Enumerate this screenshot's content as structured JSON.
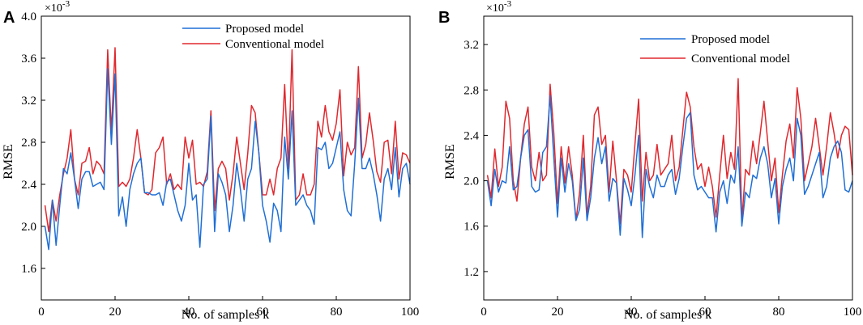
{
  "chart_data": [
    {
      "panel": "A",
      "type": "line",
      "xlabel": "No. of samples k",
      "ylabel": "RMSE",
      "exponent_label": "×10",
      "exponent_power": "-3",
      "xlim": [
        0,
        100
      ],
      "ylim": [
        1.3,
        4.0
      ],
      "xticks": [
        0,
        20,
        40,
        60,
        80,
        100
      ],
      "yticks": [
        1.6,
        2.0,
        2.4,
        2.8,
        3.2,
        3.6,
        4.0
      ],
      "ytick_labels": [
        "1.6",
        "2.0",
        "2.4",
        "2.8",
        "3.2",
        "3.6",
        "4.0"
      ],
      "grid": false,
      "legend_position": "top-center",
      "x": [
        1,
        2,
        3,
        4,
        5,
        6,
        7,
        8,
        9,
        10,
        11,
        12,
        13,
        14,
        15,
        16,
        17,
        18,
        19,
        20,
        21,
        22,
        23,
        24,
        25,
        26,
        27,
        28,
        29,
        30,
        31,
        32,
        33,
        34,
        35,
        36,
        37,
        38,
        39,
        40,
        41,
        42,
        43,
        44,
        45,
        46,
        47,
        48,
        49,
        50,
        51,
        52,
        53,
        54,
        55,
        56,
        57,
        58,
        59,
        60,
        61,
        62,
        63,
        64,
        65,
        66,
        67,
        68,
        69,
        70,
        71,
        72,
        73,
        74,
        75,
        76,
        77,
        78,
        79,
        80,
        81,
        82,
        83,
        84,
        85,
        86,
        87,
        88,
        89,
        90,
        91,
        92,
        93,
        94,
        95,
        96,
        97,
        98,
        99,
        100
      ],
      "series": [
        {
          "name": "Proposed model",
          "color": "#1f6fd6",
          "values": [
            2.0,
            1.78,
            2.25,
            1.82,
            2.2,
            2.55,
            2.5,
            2.7,
            2.45,
            2.17,
            2.45,
            2.52,
            2.52,
            2.38,
            2.4,
            2.42,
            2.35,
            3.5,
            2.78,
            3.45,
            2.1,
            2.28,
            2.0,
            2.35,
            2.5,
            2.6,
            2.65,
            2.32,
            2.32,
            2.3,
            2.3,
            2.32,
            2.2,
            2.42,
            2.45,
            2.3,
            2.15,
            2.05,
            2.2,
            2.6,
            2.25,
            2.3,
            1.8,
            2.4,
            2.45,
            3.05,
            1.95,
            2.5,
            2.42,
            2.3,
            1.95,
            2.2,
            2.6,
            2.35,
            2.05,
            2.45,
            2.55,
            3.0,
            2.7,
            2.2,
            2.05,
            1.85,
            2.22,
            2.15,
            1.95,
            2.85,
            2.45,
            3.1,
            2.2,
            2.25,
            2.3,
            2.2,
            2.15,
            2.02,
            2.75,
            2.73,
            2.8,
            2.55,
            2.6,
            2.75,
            2.9,
            2.35,
            2.15,
            2.1,
            2.6,
            3.22,
            2.55,
            2.55,
            2.65,
            2.5,
            2.3,
            2.05,
            2.45,
            2.55,
            2.35,
            2.75,
            2.28,
            2.55,
            2.6,
            2.4
          ]
        },
        {
          "name": "Conventional model",
          "color": "#e0282e",
          "values": [
            2.2,
            1.95,
            2.25,
            2.05,
            2.3,
            2.5,
            2.65,
            2.92,
            2.45,
            2.3,
            2.6,
            2.62,
            2.75,
            2.5,
            2.62,
            2.58,
            2.5,
            3.68,
            2.9,
            3.7,
            2.38,
            2.42,
            2.38,
            2.45,
            2.65,
            2.92,
            2.65,
            2.32,
            2.3,
            2.35,
            2.7,
            2.75,
            2.85,
            2.4,
            2.5,
            2.35,
            2.4,
            2.35,
            2.85,
            2.65,
            2.82,
            2.4,
            2.42,
            2.38,
            2.52,
            3.1,
            2.15,
            2.55,
            2.62,
            2.55,
            2.25,
            2.5,
            2.85,
            2.6,
            2.35,
            2.7,
            3.15,
            3.08,
            2.7,
            2.3,
            2.3,
            2.45,
            2.3,
            2.55,
            2.65,
            3.35,
            2.55,
            3.68,
            2.25,
            2.3,
            2.5,
            2.3,
            2.3,
            2.4,
            3.0,
            2.85,
            3.15,
            2.9,
            2.82,
            2.98,
            3.3,
            2.48,
            2.8,
            2.68,
            2.75,
            3.52,
            2.65,
            2.78,
            3.08,
            2.82,
            2.52,
            2.42,
            2.8,
            2.82,
            2.5,
            3.0,
            2.45,
            2.7,
            2.68,
            2.6
          ]
        }
      ]
    },
    {
      "panel": "B",
      "type": "line",
      "xlabel": "No. of samples k",
      "ylabel": "RMSE",
      "exponent_label": "×10",
      "exponent_power": "-3",
      "xlim": [
        0,
        100
      ],
      "ylim": [
        0.95,
        3.45
      ],
      "xticks": [
        0,
        20,
        40,
        60,
        80,
        100
      ],
      "yticks": [
        1.2,
        1.6,
        2.0,
        2.4,
        2.8,
        3.2
      ],
      "ytick_labels": [
        "1.2",
        "1.6",
        "2.0",
        "2.4",
        "2.8",
        "3.2"
      ],
      "grid": false,
      "legend_position": "top-center",
      "x": [
        1,
        2,
        3,
        4,
        5,
        6,
        7,
        8,
        9,
        10,
        11,
        12,
        13,
        14,
        15,
        16,
        17,
        18,
        19,
        20,
        21,
        22,
        23,
        24,
        25,
        26,
        27,
        28,
        29,
        30,
        31,
        32,
        33,
        34,
        35,
        36,
        37,
        38,
        39,
        40,
        41,
        42,
        43,
        44,
        45,
        46,
        47,
        48,
        49,
        50,
        51,
        52,
        53,
        54,
        55,
        56,
        57,
        58,
        59,
        60,
        61,
        62,
        63,
        64,
        65,
        66,
        67,
        68,
        69,
        70,
        71,
        72,
        73,
        74,
        75,
        76,
        77,
        78,
        79,
        80,
        81,
        82,
        83,
        84,
        85,
        86,
        87,
        88,
        89,
        90,
        91,
        92,
        93,
        94,
        95,
        96,
        97,
        98,
        99,
        100
      ],
      "series": [
        {
          "name": "Proposed model",
          "color": "#1f6fd6",
          "values": [
            2.0,
            1.78,
            2.1,
            1.9,
            2.0,
            1.98,
            2.3,
            1.92,
            1.95,
            2.2,
            2.4,
            2.45,
            1.95,
            1.9,
            1.92,
            2.25,
            2.3,
            2.75,
            2.2,
            1.68,
            2.2,
            1.9,
            2.15,
            2.0,
            1.65,
            1.75,
            2.2,
            1.65,
            1.85,
            2.2,
            2.38,
            2.15,
            2.3,
            1.82,
            2.02,
            1.98,
            1.52,
            2.02,
            1.92,
            1.78,
            2.05,
            2.4,
            1.5,
            2.1,
            1.95,
            1.85,
            2.05,
            1.95,
            1.95,
            2.05,
            2.1,
            1.88,
            2.02,
            2.3,
            2.55,
            2.6,
            2.05,
            1.92,
            1.95,
            1.9,
            1.85,
            1.85,
            1.55,
            1.9,
            2.0,
            1.8,
            2.05,
            1.98,
            2.3,
            1.6,
            1.9,
            1.85,
            2.05,
            2.02,
            2.2,
            2.3,
            2.15,
            1.85,
            2.02,
            1.62,
            1.95,
            2.1,
            2.2,
            2.0,
            2.55,
            2.4,
            1.88,
            1.95,
            2.05,
            2.15,
            2.25,
            1.85,
            1.95,
            2.2,
            2.3,
            2.35,
            2.25,
            1.92,
            1.9,
            2.0
          ]
        },
        {
          "name": "Conventional model",
          "color": "#e0282e",
          "values": [
            2.05,
            1.85,
            2.28,
            1.95,
            2.12,
            2.7,
            2.55,
            2.0,
            1.82,
            2.2,
            2.5,
            2.65,
            2.12,
            2.0,
            2.25,
            2.0,
            2.05,
            2.85,
            2.42,
            1.8,
            2.3,
            1.98,
            2.3,
            2.05,
            1.65,
            1.9,
            2.4,
            1.7,
            1.95,
            2.58,
            2.65,
            2.32,
            2.4,
            1.9,
            2.35,
            2.0,
            1.62,
            2.1,
            2.05,
            1.9,
            2.32,
            2.72,
            1.82,
            2.25,
            2.0,
            2.05,
            2.32,
            2.05,
            2.1,
            2.15,
            2.4,
            2.0,
            2.12,
            2.45,
            2.78,
            2.65,
            2.3,
            2.1,
            2.15,
            1.95,
            2.12,
            1.95,
            1.68,
            2.05,
            2.4,
            2.02,
            2.25,
            2.1,
            2.9,
            1.65,
            2.1,
            2.05,
            2.35,
            2.15,
            2.42,
            2.7,
            2.35,
            2.0,
            2.2,
            1.72,
            2.05,
            2.35,
            2.5,
            2.2,
            2.82,
            2.55,
            2.0,
            2.15,
            2.3,
            2.55,
            2.3,
            2.05,
            2.3,
            2.6,
            2.42,
            2.2,
            2.4,
            2.48,
            2.45,
            2.05
          ]
        }
      ]
    }
  ]
}
